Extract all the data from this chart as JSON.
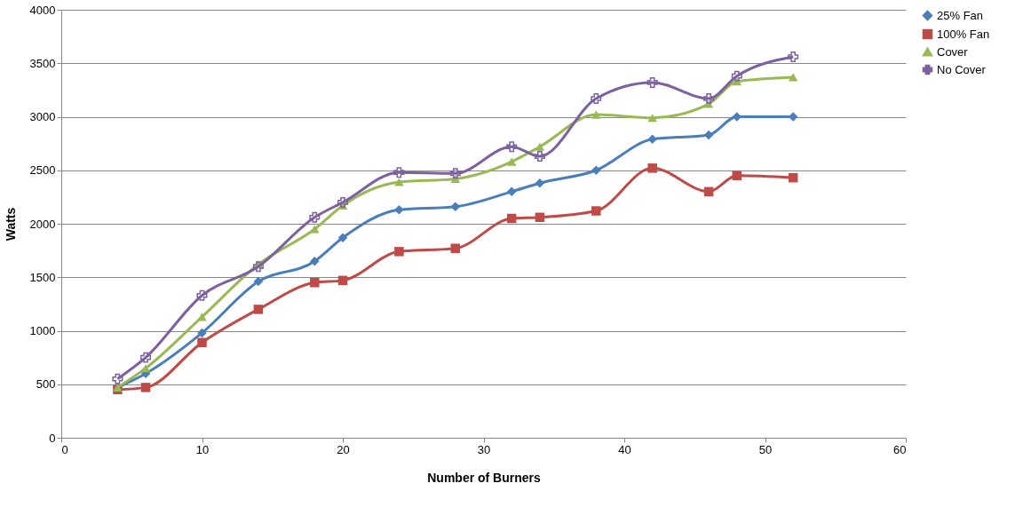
{
  "chart_data": {
    "type": "line",
    "xlabel": "Number of Burners",
    "ylabel": "Watts",
    "x": [
      4,
      6,
      10,
      14,
      18,
      20,
      24,
      28,
      32,
      34,
      38,
      42,
      46,
      48,
      52
    ],
    "series": [
      {
        "name": "25% Fan",
        "color": "#4a7ebb",
        "marker": "diamond",
        "values": [
          470,
          600,
          980,
          1460,
          1650,
          1870,
          2130,
          2160,
          2300,
          2380,
          2500,
          2790,
          2830,
          3000,
          3000
        ]
      },
      {
        "name": "100% Fan",
        "color": "#be4b48",
        "marker": "square",
        "values": [
          450,
          470,
          890,
          1200,
          1450,
          1470,
          1740,
          1770,
          2050,
          2060,
          2120,
          2520,
          2300,
          2450,
          2430
        ]
      },
      {
        "name": "Cover",
        "color": "#98b954",
        "marker": "triangle",
        "values": [
          470,
          650,
          1130,
          1620,
          1950,
          2170,
          2390,
          2420,
          2580,
          2720,
          3020,
          2990,
          3120,
          3330,
          3370
        ]
      },
      {
        "name": "No Cover",
        "color": "#7d60a0",
        "marker": "cross",
        "values": [
          550,
          750,
          1330,
          1600,
          2060,
          2200,
          2480,
          2470,
          2720,
          2630,
          3170,
          3320,
          3170,
          3380,
          3560
        ]
      }
    ],
    "xlim": [
      0,
      60
    ],
    "xticks": [
      0,
      10,
      20,
      30,
      40,
      50,
      60
    ],
    "ylim": [
      0,
      4000
    ],
    "yticks": [
      0,
      500,
      1000,
      1500,
      2000,
      2500,
      3000,
      3500,
      4000
    ],
    "grid": "y",
    "legend": "right",
    "line_style": "solid"
  }
}
